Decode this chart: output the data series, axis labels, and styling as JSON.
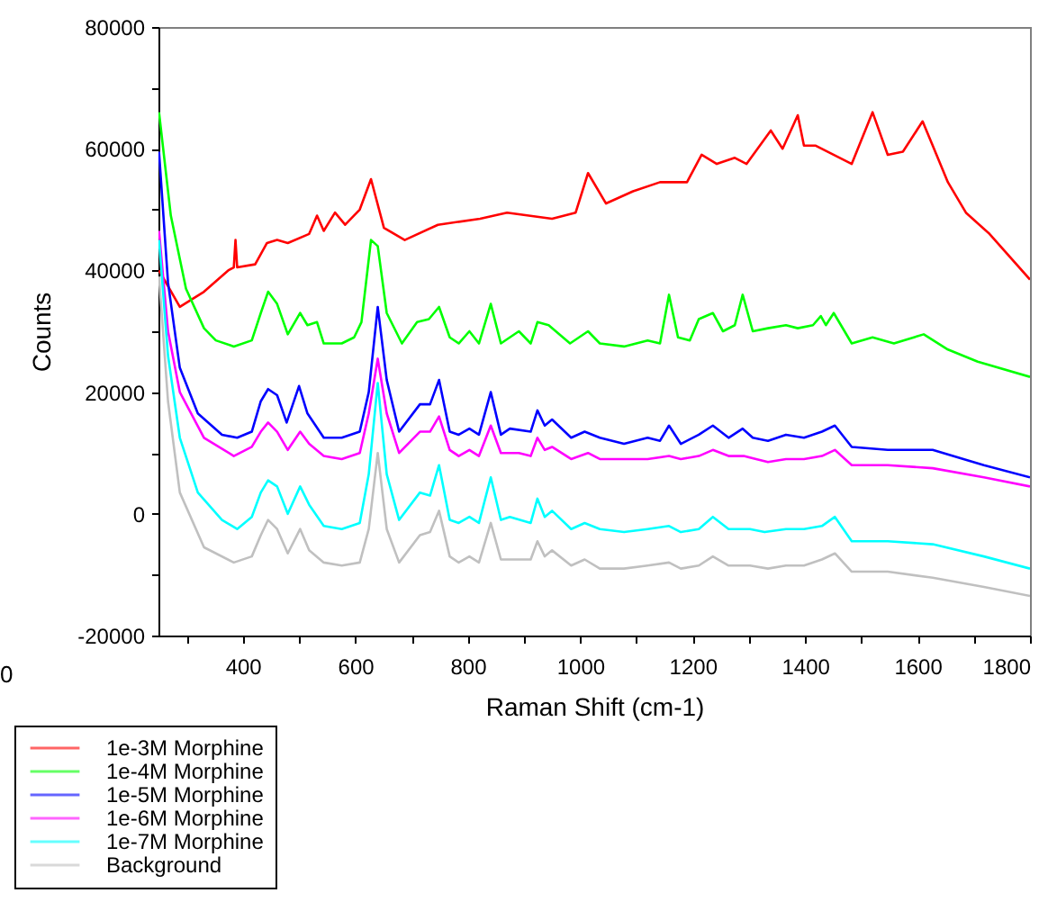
{
  "chart_data": {
    "type": "line",
    "xlabel": "Raman Shift (cm-1)",
    "ylabel": "Counts",
    "xlim": [
      250,
      1800
    ],
    "xticks": [
      {
        "value": 300,
        "label": null
      },
      400,
      {
        "value": 500,
        "label": null
      },
      600,
      {
        "value": 700,
        "label": null
      },
      800,
      {
        "value": 900,
        "label": null
      },
      1000,
      {
        "value": 1100,
        "label": null
      },
      1200,
      {
        "value": 1300,
        "label": null
      },
      1400,
      {
        "value": 1500,
        "label": null
      },
      1600,
      {
        "value": 1700,
        "label": null
      },
      1800
    ],
    "ylim": [
      -20000,
      80000
    ],
    "yticks": [
      -20000,
      {
        "value": -10000,
        "label": null
      },
      0,
      {
        "value": 10000,
        "label": null
      },
      20000,
      {
        "value": 30000,
        "label": null
      },
      40000,
      {
        "value": 50000,
        "label": null
      },
      60000,
      {
        "value": 70000,
        "label": null
      },
      80000
    ],
    "legend": "bottom left",
    "annotations": [
      "0"
    ],
    "series": [
      {
        "name": "1e-3M Morphine",
        "color": "#ff0000",
        "x": [
          251,
          288,
          331,
          374,
          384,
          387,
          390,
          422,
          443,
          461,
          480,
          518,
          532,
          544,
          564,
          582,
          608,
          628,
          651,
          688,
          747,
          822,
          870,
          950,
          992,
          1014,
          1046,
          1094,
          1142,
          1190,
          1216,
          1243,
          1275,
          1296,
          1339,
          1360,
          1387,
          1398,
          1419,
          1483,
          1520,
          1547,
          1574,
          1609,
          1627,
          1654,
          1686,
          1728,
          1800
        ],
        "values": [
          40000,
          34000,
          36500,
          40000,
          40500,
          45000,
          40500,
          41000,
          44500,
          45000,
          44500,
          46000,
          49000,
          46500,
          49500,
          47500,
          50000,
          55000,
          47000,
          45000,
          47500,
          48500,
          49500,
          48500,
          49500,
          56000,
          51000,
          53000,
          54500,
          54500,
          59000,
          57500,
          58500,
          57500,
          63000,
          60000,
          65500,
          60500,
          60500,
          57500,
          66000,
          59000,
          59500,
          64500,
          60500,
          54500,
          49500,
          46000,
          38500
        ]
      },
      {
        "name": "1e-4M Morphine",
        "color": "#00ff00",
        "x": [
          251,
          272,
          299,
          331,
          352,
          384,
          416,
          432,
          445,
          461,
          480,
          502,
          515,
          532,
          544,
          576,
          598,
          611,
          628,
          640,
          656,
          683,
          710,
          731,
          749,
          768,
          784,
          803,
          820,
          841,
          859,
          891,
          912,
          924,
          944,
          982,
          1014,
          1035,
          1078,
          1120,
          1142,
          1158,
          1174,
          1195,
          1211,
          1236,
          1254,
          1275,
          1289,
          1307,
          1334,
          1366,
          1387,
          1414,
          1428,
          1437,
          1451,
          1483,
          1520,
          1558,
          1611,
          1654,
          1707,
          1800
        ],
        "values": [
          66000,
          49000,
          37000,
          30500,
          28500,
          27500,
          28500,
          33000,
          36500,
          34500,
          29500,
          33000,
          31000,
          31500,
          28000,
          28000,
          29000,
          31500,
          45000,
          44000,
          33000,
          28000,
          31500,
          32000,
          34000,
          29000,
          28000,
          30000,
          28000,
          34500,
          28000,
          30000,
          28000,
          31500,
          31000,
          28000,
          30000,
          28000,
          27500,
          28500,
          28000,
          36000,
          29000,
          28500,
          32000,
          33000,
          30000,
          31000,
          36000,
          30000,
          30500,
          31000,
          30500,
          31000,
          32500,
          31000,
          33000,
          28000,
          29000,
          28000,
          29500,
          27000,
          25000,
          22500
        ]
      },
      {
        "name": "1e-5M Morphine",
        "color": "#0000ff",
        "x": [
          251,
          267,
          288,
          320,
          363,
          390,
          416,
          432,
          445,
          461,
          478,
          500,
          515,
          544,
          576,
          608,
          624,
          640,
          656,
          678,
          715,
          733,
          749,
          768,
          784,
          803,
          820,
          841,
          859,
          875,
          912,
          924,
          937,
          950,
          984,
          1008,
          1035,
          1078,
          1120,
          1142,
          1158,
          1179,
          1211,
          1236,
          1264,
          1289,
          1307,
          1334,
          1366,
          1398,
          1430,
          1453,
          1483,
          1547,
          1627,
          1718,
          1800
        ],
        "values": [
          59500,
          38000,
          24000,
          16500,
          13000,
          12500,
          13500,
          18500,
          20500,
          19500,
          15000,
          21000,
          16500,
          12500,
          12500,
          13500,
          20000,
          34000,
          22000,
          13500,
          18000,
          18000,
          22000,
          13500,
          13000,
          14000,
          13000,
          20000,
          13000,
          14000,
          13500,
          17000,
          14500,
          15500,
          12500,
          13500,
          12500,
          11500,
          12500,
          12000,
          14500,
          11500,
          13000,
          14500,
          12500,
          14000,
          12500,
          12000,
          13000,
          12500,
          13500,
          14500,
          11000,
          10500,
          10500,
          8000,
          6000
        ]
      },
      {
        "name": "1e-6M Morphine",
        "color": "#ff00ff",
        "x": [
          251,
          267,
          288,
          331,
          384,
          416,
          432,
          445,
          461,
          480,
          502,
          518,
          544,
          576,
          608,
          624,
          640,
          656,
          678,
          715,
          733,
          749,
          768,
          784,
          803,
          820,
          841,
          859,
          891,
          912,
          924,
          937,
          950,
          984,
          1014,
          1035,
          1078,
          1120,
          1158,
          1179,
          1211,
          1236,
          1264,
          1291,
          1334,
          1366,
          1398,
          1430,
          1453,
          1483,
          1547,
          1627,
          1718,
          1800
        ],
        "values": [
          46500,
          30000,
          20000,
          12500,
          9500,
          11000,
          13500,
          15000,
          13500,
          10500,
          13500,
          11500,
          9500,
          9000,
          10000,
          16500,
          25500,
          16500,
          10000,
          13500,
          13500,
          16000,
          10500,
          9500,
          10500,
          9500,
          14500,
          10000,
          10000,
          9500,
          12500,
          10500,
          11000,
          9000,
          10000,
          9000,
          9000,
          9000,
          9500,
          9000,
          9500,
          10500,
          9500,
          9500,
          8500,
          9000,
          9000,
          9500,
          10500,
          8000,
          8000,
          7500,
          6000,
          4500
        ]
      },
      {
        "name": "1e-7M Morphine",
        "color": "#00ffff",
        "x": [
          251,
          267,
          288,
          320,
          363,
          390,
          416,
          432,
          445,
          461,
          480,
          502,
          518,
          544,
          576,
          608,
          624,
          640,
          656,
          678,
          715,
          733,
          749,
          768,
          784,
          803,
          820,
          841,
          859,
          875,
          912,
          924,
          937,
          950,
          984,
          1008,
          1035,
          1078,
          1120,
          1158,
          1179,
          1211,
          1236,
          1264,
          1302,
          1328,
          1366,
          1398,
          1430,
          1453,
          1483,
          1547,
          1627,
          1718,
          1800
        ],
        "values": [
          45000,
          26000,
          12500,
          3500,
          -1000,
          -2500,
          -500,
          3500,
          5500,
          4500,
          0,
          4500,
          1500,
          -2000,
          -2500,
          -1500,
          6500,
          21500,
          6500,
          -1000,
          3500,
          3000,
          8000,
          -1000,
          -1500,
          -500,
          -1500,
          6000,
          -1000,
          -500,
          -1500,
          2500,
          -500,
          500,
          -2500,
          -1500,
          -2500,
          -3000,
          -2500,
          -2000,
          -3000,
          -2500,
          -500,
          -2500,
          -2500,
          -3000,
          -2500,
          -2500,
          -2000,
          -500,
          -4500,
          -4500,
          -5000,
          -7000,
          -9000
        ]
      },
      {
        "name": "Background",
        "color": "#c0c0c0",
        "x": [
          251,
          267,
          288,
          331,
          384,
          416,
          432,
          445,
          461,
          480,
          502,
          518,
          544,
          576,
          608,
          624,
          640,
          656,
          678,
          715,
          733,
          749,
          768,
          784,
          803,
          820,
          841,
          859,
          891,
          912,
          924,
          937,
          950,
          984,
          1008,
          1035,
          1078,
          1120,
          1158,
          1179,
          1211,
          1236,
          1264,
          1302,
          1334,
          1366,
          1398,
          1430,
          1453,
          1483,
          1547,
          1627,
          1718,
          1800
        ],
        "values": [
          39000,
          18500,
          3500,
          -5500,
          -8000,
          -7000,
          -3500,
          -1000,
          -2500,
          -6500,
          -2500,
          -6000,
          -8000,
          -8500,
          -8000,
          -2500,
          10000,
          -2500,
          -8000,
          -3500,
          -3000,
          500,
          -7000,
          -8000,
          -7000,
          -8000,
          -1500,
          -7500,
          -7500,
          -7500,
          -4500,
          -7000,
          -6000,
          -8500,
          -7500,
          -9000,
          -9000,
          -8500,
          -8000,
          -9000,
          -8500,
          -7000,
          -8500,
          -8500,
          -9000,
          -8500,
          -8500,
          -7500,
          -6500,
          -9500,
          -9500,
          -10500,
          -12000,
          -13500
        ]
      }
    ]
  }
}
